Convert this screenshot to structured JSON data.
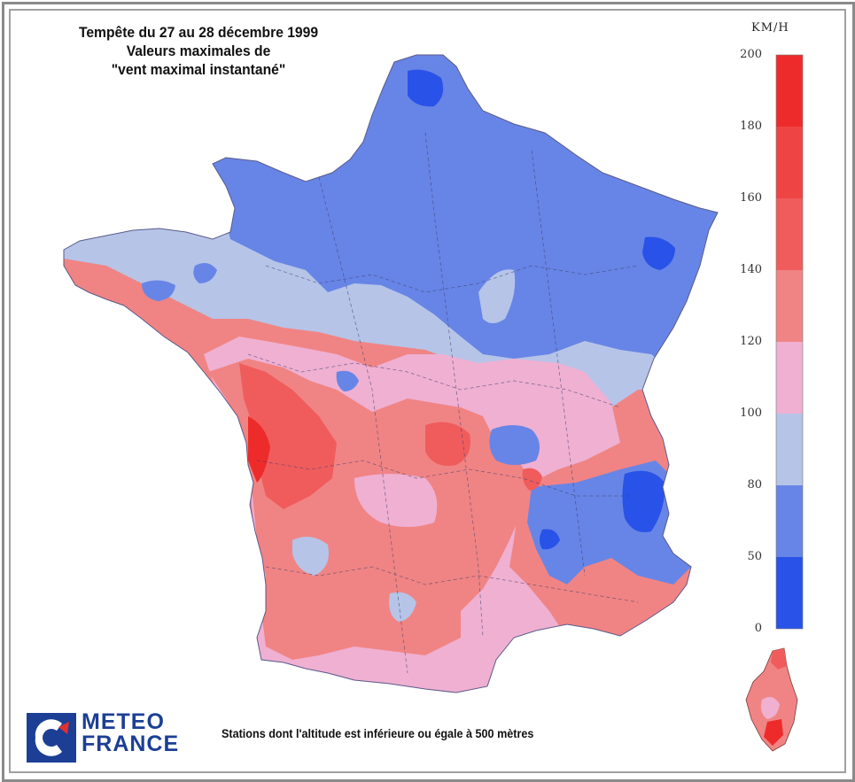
{
  "title_lines": [
    "Tempête du 27 au 28 décembre 1999",
    "Valeurs maximales de",
    "\"vent maximal instantané\""
  ],
  "legend": {
    "unit": "KM/H",
    "ticks": [
      "200",
      "180",
      "160",
      "140",
      "120",
      "100",
      "80",
      "50",
      "0"
    ],
    "bands": [
      {
        "range": "180-200",
        "color": "#ee2b2b"
      },
      {
        "range": "160-180",
        "color": "#ef4444"
      },
      {
        "range": "140-160",
        "color": "#f05c5c"
      },
      {
        "range": "120-140",
        "color": "#f08484"
      },
      {
        "range": "100-120",
        "color": "#efb0d2"
      },
      {
        "range": "80-100",
        "color": "#b6c4e8"
      },
      {
        "range": "50-80",
        "color": "#6785e6"
      },
      {
        "range": "0-50",
        "color": "#2952e8"
      }
    ]
  },
  "footer_note": "Stations dont l'altitude est inférieure ou égale à 500 mètres",
  "logo": {
    "line1": "METEO",
    "line2": "FRANCE",
    "color": "#1c3f95"
  }
}
